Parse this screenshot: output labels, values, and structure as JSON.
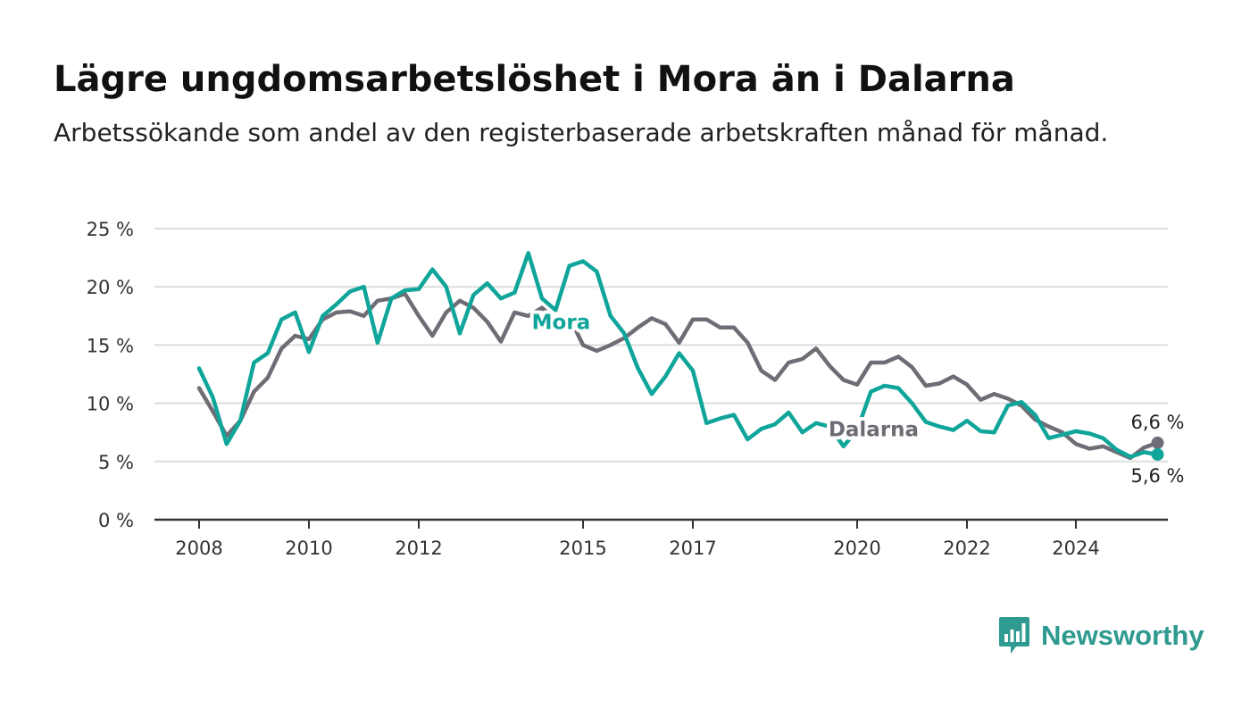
{
  "title": "Lägre ungdomsarbetslöshet i Mora än i Dalarna",
  "subtitle": "Arbetssökande som andel av den registerbaserade arbetskraften månad för månad.",
  "brand": {
    "name": "Newsworthy",
    "color": "#2f9a8f",
    "icon": "newsworthy-chart-bubble-icon"
  },
  "chart_data": {
    "type": "line",
    "title": "Lägre ungdomsarbetslöshet i Mora än i Dalarna",
    "subtitle": "Arbetssökande som andel av den registerbaserade arbetskraften månad för månad.",
    "xlabel": "",
    "ylabel": "",
    "xlim": [
      2008,
      2025.5
    ],
    "ylim": [
      0,
      25
    ],
    "x_ticks": [
      2008,
      2010,
      2012,
      2015,
      2017,
      2020,
      2022,
      2024
    ],
    "x_tick_labels": [
      "2008",
      "2010",
      "2012",
      "2015",
      "2017",
      "2020",
      "2022",
      "2024"
    ],
    "y_ticks": [
      0,
      5,
      10,
      15,
      20,
      25
    ],
    "y_tick_labels": [
      "0 %",
      "5 %",
      "10 %",
      "15 %",
      "20 %",
      "25 %"
    ],
    "grid": true,
    "legend": "inline labels",
    "series": [
      {
        "name": "Dalarna",
        "color": "#706c75",
        "end_label": "6,6 %",
        "points": [
          [
            2008.0,
            11.3
          ],
          [
            2008.25,
            9.3
          ],
          [
            2008.5,
            7.2
          ],
          [
            2008.75,
            8.5
          ],
          [
            2009.0,
            11.0
          ],
          [
            2009.25,
            12.2
          ],
          [
            2009.5,
            14.7
          ],
          [
            2009.75,
            15.8
          ],
          [
            2010.0,
            15.5
          ],
          [
            2010.25,
            17.2
          ],
          [
            2010.5,
            17.8
          ],
          [
            2010.75,
            17.9
          ],
          [
            2011.0,
            17.5
          ],
          [
            2011.25,
            18.8
          ],
          [
            2011.5,
            19.0
          ],
          [
            2011.75,
            19.4
          ],
          [
            2012.0,
            17.5
          ],
          [
            2012.25,
            15.8
          ],
          [
            2012.5,
            17.8
          ],
          [
            2012.75,
            18.8
          ],
          [
            2013.0,
            18.2
          ],
          [
            2013.25,
            17.0
          ],
          [
            2013.5,
            15.3
          ],
          [
            2013.75,
            17.8
          ],
          [
            2014.0,
            17.5
          ],
          [
            2014.25,
            18.2
          ],
          [
            2014.5,
            17.1
          ],
          [
            2014.75,
            17.4
          ],
          [
            2015.0,
            15.0
          ],
          [
            2015.25,
            14.5
          ],
          [
            2015.5,
            15.0
          ],
          [
            2015.75,
            15.6
          ],
          [
            2016.0,
            16.5
          ],
          [
            2016.25,
            17.3
          ],
          [
            2016.5,
            16.8
          ],
          [
            2016.75,
            15.2
          ],
          [
            2017.0,
            17.2
          ],
          [
            2017.25,
            17.2
          ],
          [
            2017.5,
            16.5
          ],
          [
            2017.75,
            16.5
          ],
          [
            2018.0,
            15.2
          ],
          [
            2018.25,
            12.8
          ],
          [
            2018.5,
            12.0
          ],
          [
            2018.75,
            13.5
          ],
          [
            2019.0,
            13.8
          ],
          [
            2019.25,
            14.7
          ],
          [
            2019.5,
            13.2
          ],
          [
            2019.75,
            12.0
          ],
          [
            2020.0,
            11.6
          ],
          [
            2020.25,
            13.5
          ],
          [
            2020.5,
            13.5
          ],
          [
            2020.75,
            14.0
          ],
          [
            2021.0,
            13.1
          ],
          [
            2021.25,
            11.5
          ],
          [
            2021.5,
            11.7
          ],
          [
            2021.75,
            12.3
          ],
          [
            2022.0,
            11.6
          ],
          [
            2022.25,
            10.3
          ],
          [
            2022.5,
            10.8
          ],
          [
            2022.75,
            10.4
          ],
          [
            2023.0,
            9.8
          ],
          [
            2023.25,
            8.6
          ],
          [
            2023.5,
            8.0
          ],
          [
            2023.75,
            7.5
          ],
          [
            2024.0,
            6.5
          ],
          [
            2024.25,
            6.1
          ],
          [
            2024.5,
            6.3
          ],
          [
            2024.75,
            5.8
          ],
          [
            2025.0,
            5.3
          ],
          [
            2025.25,
            6.2
          ],
          [
            2025.5,
            6.6
          ]
        ]
      },
      {
        "name": "Mora",
        "color": "#10a59a",
        "end_label": "5,6 %",
        "points": [
          [
            2008.0,
            13.0
          ],
          [
            2008.25,
            10.5
          ],
          [
            2008.5,
            6.5
          ],
          [
            2008.75,
            8.5
          ],
          [
            2009.0,
            13.5
          ],
          [
            2009.25,
            14.3
          ],
          [
            2009.5,
            17.2
          ],
          [
            2009.75,
            17.8
          ],
          [
            2010.0,
            14.4
          ],
          [
            2010.25,
            17.5
          ],
          [
            2010.5,
            18.5
          ],
          [
            2010.75,
            19.6
          ],
          [
            2011.0,
            20.0
          ],
          [
            2011.25,
            15.2
          ],
          [
            2011.5,
            19.0
          ],
          [
            2011.75,
            19.7
          ],
          [
            2012.0,
            19.8
          ],
          [
            2012.25,
            21.5
          ],
          [
            2012.5,
            20.0
          ],
          [
            2012.75,
            16.0
          ],
          [
            2013.0,
            19.3
          ],
          [
            2013.25,
            20.3
          ],
          [
            2013.5,
            19.0
          ],
          [
            2013.75,
            19.5
          ],
          [
            2014.0,
            22.9
          ],
          [
            2014.25,
            19.0
          ],
          [
            2014.5,
            18.0
          ],
          [
            2014.75,
            21.8
          ],
          [
            2015.0,
            22.2
          ],
          [
            2015.25,
            21.3
          ],
          [
            2015.5,
            17.5
          ],
          [
            2015.75,
            16.0
          ],
          [
            2016.0,
            13.0
          ],
          [
            2016.25,
            10.8
          ],
          [
            2016.5,
            12.3
          ],
          [
            2016.75,
            14.3
          ],
          [
            2017.0,
            12.8
          ],
          [
            2017.25,
            8.3
          ],
          [
            2017.5,
            8.7
          ],
          [
            2017.75,
            9.0
          ],
          [
            2018.0,
            6.9
          ],
          [
            2018.25,
            7.8
          ],
          [
            2018.5,
            8.2
          ],
          [
            2018.75,
            9.2
          ],
          [
            2019.0,
            7.5
          ],
          [
            2019.25,
            8.3
          ],
          [
            2019.5,
            8.0
          ],
          [
            2019.75,
            6.3
          ],
          [
            2020.0,
            7.7
          ],
          [
            2020.25,
            11.0
          ],
          [
            2020.5,
            11.5
          ],
          [
            2020.75,
            11.3
          ],
          [
            2021.0,
            10.0
          ],
          [
            2021.25,
            8.4
          ],
          [
            2021.5,
            8.0
          ],
          [
            2021.75,
            7.7
          ],
          [
            2022.0,
            8.5
          ],
          [
            2022.25,
            7.6
          ],
          [
            2022.5,
            7.5
          ],
          [
            2022.75,
            9.8
          ],
          [
            2023.0,
            10.1
          ],
          [
            2023.25,
            9.0
          ],
          [
            2023.5,
            7.0
          ],
          [
            2023.75,
            7.3
          ],
          [
            2024.0,
            7.6
          ],
          [
            2024.25,
            7.4
          ],
          [
            2024.5,
            7.0
          ],
          [
            2024.75,
            6.0
          ],
          [
            2025.0,
            5.4
          ],
          [
            2025.25,
            5.8
          ],
          [
            2025.5,
            5.6
          ]
        ]
      }
    ],
    "inline_labels": [
      {
        "series": "Mora",
        "text": "Mora",
        "x": 2014.6,
        "y": 17.0
      },
      {
        "series": "Dalarna",
        "text": "Dalarna",
        "x": 2020.3,
        "y": 7.8
      }
    ]
  }
}
